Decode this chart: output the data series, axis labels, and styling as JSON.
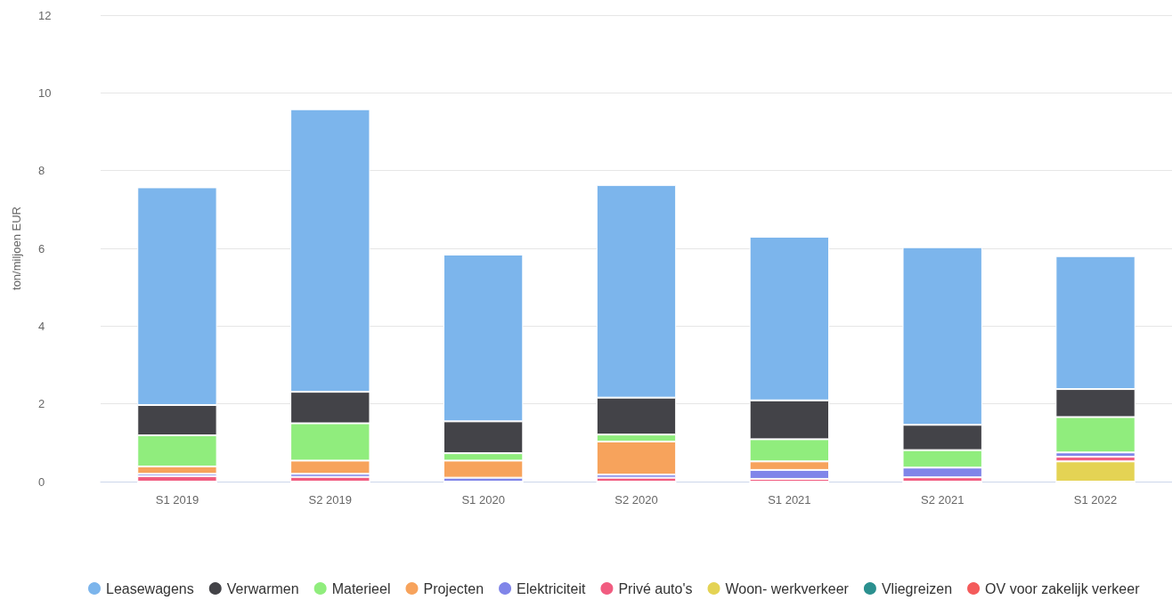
{
  "chart_data": {
    "type": "bar",
    "stacked": true,
    "ylabel": "ton/miljoen EUR",
    "categories": [
      "S1 2019",
      "S2 2019",
      "S1 2020",
      "S2 2020",
      "S1 2021",
      "S2 2021",
      "S1 2022"
    ],
    "ylim": [
      0,
      12
    ],
    "yticks": [
      0,
      2,
      4,
      6,
      8,
      10,
      12
    ],
    "grid": "y",
    "legend": "bottom",
    "series": [
      {
        "name": "OV voor zakelijk verkeer",
        "color": "#f45b5b",
        "values": [
          0,
          0,
          0,
          0,
          0,
          0,
          0
        ]
      },
      {
        "name": "Vliegreizen",
        "color": "#2b908f",
        "values": [
          0,
          0,
          0,
          0,
          0,
          0,
          0
        ]
      },
      {
        "name": "Woon- werkverkeer",
        "color": "#e4d354",
        "values": [
          0,
          0,
          0,
          0,
          0,
          0,
          0.52
        ]
      },
      {
        "name": "Privé auto's",
        "color": "#f15c80",
        "values": [
          0.14,
          0.12,
          0,
          0.1,
          0.07,
          0.11,
          0.12
        ]
      },
      {
        "name": "Elektriciteit",
        "color": "#8085e9",
        "values": [
          0.06,
          0.08,
          0.1,
          0.08,
          0.23,
          0.25,
          0.11
        ]
      },
      {
        "name": "Projecten",
        "color": "#f7a35c",
        "values": [
          0.19,
          0.34,
          0.44,
          0.85,
          0.22,
          0,
          0
        ]
      },
      {
        "name": "Materieel",
        "color": "#90ed7d",
        "values": [
          0.8,
          0.96,
          0.19,
          0.18,
          0.57,
          0.45,
          0.91
        ]
      },
      {
        "name": "Verwarmen",
        "color": "#434348",
        "values": [
          0.78,
          0.81,
          0.82,
          0.95,
          1.0,
          0.65,
          0.72
        ]
      },
      {
        "name": "Leasewagens",
        "color": "#7cb5ec",
        "values": [
          5.6,
          7.27,
          4.29,
          5.47,
          4.21,
          4.57,
          3.42
        ]
      }
    ]
  }
}
